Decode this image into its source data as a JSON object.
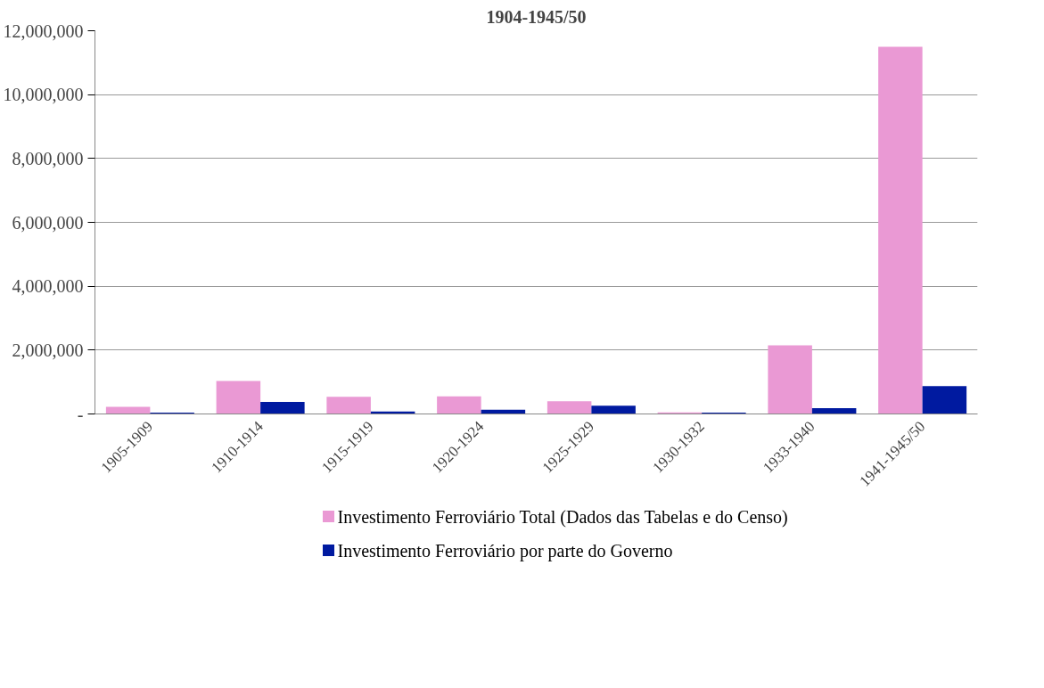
{
  "chart_data": {
    "type": "bar",
    "title": "1904-1945/50",
    "categories": [
      "1905-1909",
      "1910-1914",
      "1915-1919",
      "1920-1924",
      "1925-1929",
      "1930-1932",
      "1933-1940",
      "1941-1945/50"
    ],
    "series": [
      {
        "name": "Investimento Ferroviário Total (Dados das Tabelas e do Censo)",
        "color": "#ea99d4",
        "values": [
          220000,
          1030000,
          540000,
          550000,
          400000,
          50000,
          2150000,
          11500000
        ]
      },
      {
        "name": "Investimento Ferroviário por parte do Governo",
        "color": "#001aa0",
        "values": [
          40000,
          380000,
          80000,
          130000,
          260000,
          40000,
          180000,
          870000
        ]
      }
    ],
    "ylim": [
      0,
      12000000
    ],
    "yticks": [
      {
        "value": 0,
        "label": "-"
      },
      {
        "value": 2000000,
        "label": "2,000,000"
      },
      {
        "value": 4000000,
        "label": "4,000,000"
      },
      {
        "value": 6000000,
        "label": "6,000,000"
      },
      {
        "value": 8000000,
        "label": "8,000,000"
      },
      {
        "value": 10000000,
        "label": "10,000,000"
      },
      {
        "value": 12000000,
        "label": "12,000,000"
      }
    ],
    "grid": "y",
    "legend": "bottom"
  }
}
